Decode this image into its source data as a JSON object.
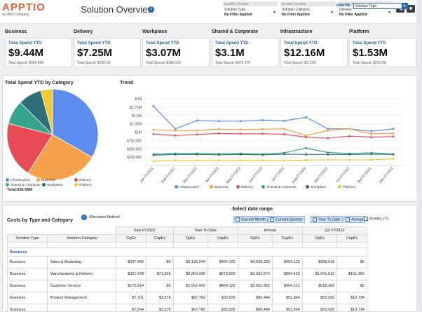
{
  "header": {
    "logo": "APPTIO",
    "logo_sub": "an IBM Company",
    "title": "Solution Overview",
    "info": "i",
    "filters": [
      {
        "head": "GLOBAL FILTERS",
        "name": "Solution Type",
        "value": "No Filter Applied"
      },
      {
        "head": "GLOBAL FILTERS",
        "name": "Solution Category",
        "value": "No Filter Applied"
      },
      {
        "head": "GLOBAL FILTERS",
        "name": "Delivery",
        "value": "No Filter Applied"
      }
    ],
    "back_label": "◀",
    "forward_label": "■"
  },
  "kpis": [
    {
      "category": "Business",
      "label": "Total Spend YTD",
      "value": "$9.44M",
      "sub": "Total Spend: $938.86K"
    },
    {
      "category": "Delivery",
      "label": "Total Spend YTD",
      "value": "$7.25M",
      "sub": "Total Spend: $790.5K"
    },
    {
      "category": "Workplace",
      "label": "Total Spend YTD",
      "value": "$3.07M",
      "sub": "Total Spend: $345.21K"
    },
    {
      "category": "Shared & Corporate",
      "label": "Total Spend YTD",
      "value": "$3.1M",
      "sub": "Total Spend: $378.37K"
    },
    {
      "category": "Infrastructure",
      "label": "Total Spend YTD",
      "value": "$12.16M",
      "sub": "Total Spend: $1.12M"
    },
    {
      "category": "Platform",
      "label": "Total Spend YTD",
      "value": "$1.53M",
      "sub": "Total Spend: $219.5K"
    }
  ],
  "pie": {
    "title": "Total Spend YTD by Category",
    "total": "Total:$36.56M",
    "slices": [
      {
        "name": "Infrastructure",
        "value": 12.16,
        "color": "#5b8def"
      },
      {
        "name": "Business",
        "value": 9.44,
        "color": "#f5a04a"
      },
      {
        "name": "Delivery",
        "value": 7.25,
        "color": "#e84d57"
      },
      {
        "name": "Shared & Corporate",
        "value": 3.1,
        "color": "#36a58b"
      },
      {
        "name": "Workplace",
        "value": 3.07,
        "color": "#2f6f77"
      },
      {
        "name": "Platform",
        "value": 1.53,
        "color": "#f2cb2f"
      }
    ]
  },
  "viewby": {
    "label": "View by",
    "value": "Solution Type"
  },
  "chart_data": {
    "type": "line",
    "title": "Trend",
    "x": [
      "Jan FY2022",
      "Feb FY2022",
      "Mar FY2022",
      "Apr FY2022",
      "May FY2022",
      "Jun FY2022",
      "Jul FY2022",
      "Aug FY2022",
      "Sep FY2022",
      "Oct FY2022",
      "Nov FY2022",
      "Dec FY2022"
    ],
    "ylim": [
      0,
      2000000
    ],
    "yticks": [
      250000,
      500000,
      750000,
      1000000,
      1250000,
      1500000,
      1750000,
      2000000
    ],
    "ytick_labels": [
      "$250,000",
      "$500,000",
      "$750,000",
      "$1M",
      "$1.25M",
      "$1.5M",
      "$1.75M",
      "$2M"
    ],
    "series": [
      {
        "name": "Infrastructure",
        "color": "#5b8def",
        "values": [
          1780000,
          1100000,
          1350000,
          1330000,
          1330000,
          1360000,
          1340000,
          1450000,
          1100000,
          1100000,
          1030000,
          1100000
        ]
      },
      {
        "name": "Business",
        "color": "#f5a04a",
        "values": [
          1070000,
          1050000,
          1050000,
          1090000,
          1080000,
          1090000,
          1100000,
          900000,
          1050000,
          1100000,
          950000,
          960000
        ]
      },
      {
        "name": "Delivery",
        "color": "#e84d57",
        "values": [
          940000,
          900000,
          930000,
          960000,
          950000,
          950000,
          940000,
          850000,
          820000,
          880000,
          850000,
          870000
        ]
      },
      {
        "name": "Shared & Corporate",
        "color": "#36a58b",
        "values": [
          340000,
          360000,
          360000,
          350000,
          360000,
          340000,
          380000,
          520000,
          390000,
          360000,
          380000,
          340000
        ]
      },
      {
        "name": "Workplace",
        "color": "#2f6f77",
        "values": [
          310000,
          330000,
          330000,
          320000,
          330000,
          320000,
          340000,
          330000,
          330000,
          330000,
          340000,
          330000
        ]
      },
      {
        "name": "Platform",
        "color": "#f2cb2f",
        "values": [
          130000,
          150000,
          150000,
          150000,
          150000,
          150000,
          150000,
          160000,
          170000,
          170000,
          170000,
          200000
        ]
      }
    ]
  },
  "table": {
    "title": "Costs by Type and Category",
    "alloc_label": "Allocation Method",
    "date_range_title": "Select date range",
    "date_options": [
      {
        "label": "Current Month",
        "checked": true
      },
      {
        "label": "Current Quarter",
        "checked": true
      },
      {
        "label": "Year To Date",
        "checked": true
      },
      {
        "label": "Annual",
        "checked": true
      },
      {
        "label": "Months (Y)",
        "checked": false
      }
    ],
    "period_headers": [
      "Sep FY2022",
      "Year To Date",
      "Annual",
      "Q3 FY2022"
    ],
    "col_headers": [
      "Solution Type",
      "Solution Category",
      "OpEx",
      "CapEx",
      "OpEx",
      "CapEx",
      "OpEx",
      "CapEx",
      "OpEx",
      "CapEx"
    ],
    "group": "Business",
    "rows": [
      [
        "Business",
        "Sales & Marketing",
        "$347,465",
        "$0",
        "$3,192,244",
        "$464,122",
        "$4,038,233",
        "$464,122",
        "$996,618",
        "$0"
      ],
      [
        "Business",
        "Manufacturing & Delivery",
        "$321,478",
        "$71,558",
        "$2,894,095",
        "$670,529",
        "$3,952,574",
        "$864,420",
        "$1,041,010",
        "$161,350"
      ],
      [
        "Business",
        "Customer Service",
        "$175,814",
        "$0",
        "$1,552,442",
        "$464,122",
        "$2,052,852",
        "$464,122",
        "$518,366",
        "$0"
      ],
      [
        "Business",
        "Product Management",
        "$7,701",
        "$3,578",
        "$67,760",
        "$33,526",
        "$90,444",
        "$51,864",
        "$22,920",
        "$10,734"
      ],
      [
        "Business",
        "",
        "$7,684",
        "$3,578",
        "$67,760",
        "$33,526",
        "$90,444",
        "$51,864",
        "$22,920",
        "$10,734"
      ]
    ]
  }
}
